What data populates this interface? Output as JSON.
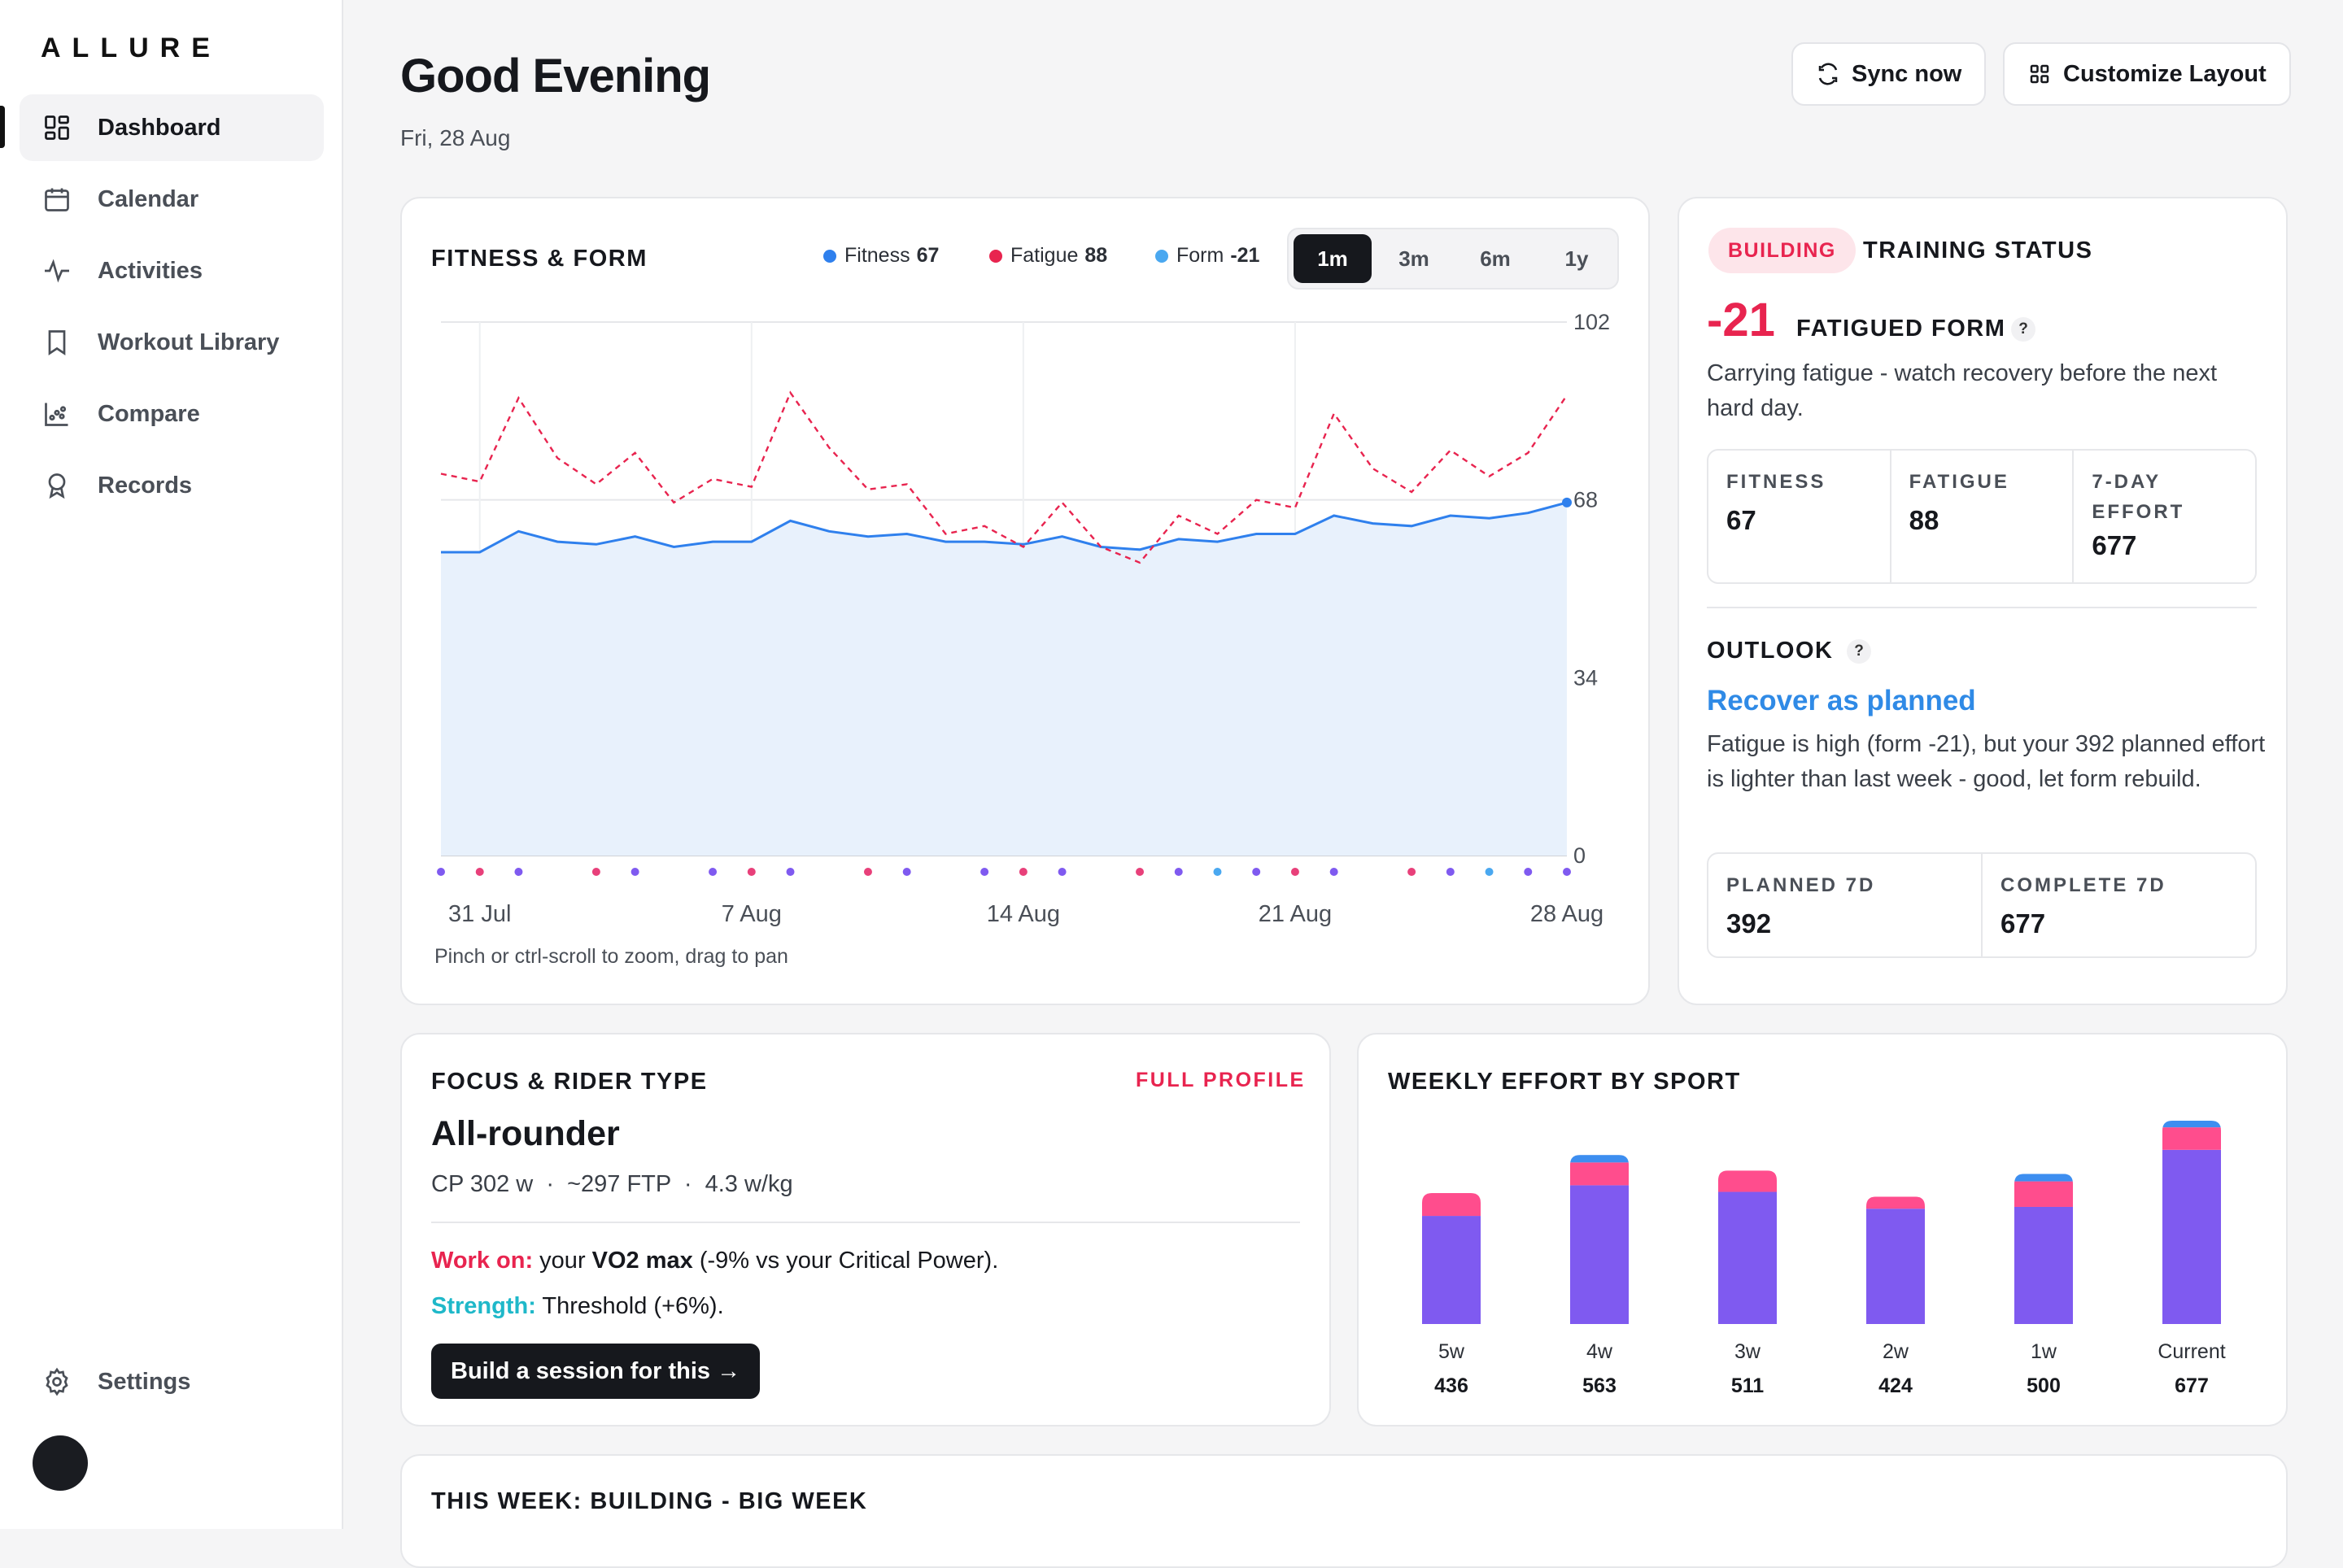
{
  "app": {
    "logo": "ALLURE"
  },
  "sidebar": {
    "items": [
      {
        "label": "Dashboard",
        "icon": "dashboard-icon",
        "active": true
      },
      {
        "label": "Calendar",
        "icon": "calendar-icon"
      },
      {
        "label": "Activities",
        "icon": "activity-icon"
      },
      {
        "label": "Workout Library",
        "icon": "bookmark-icon"
      },
      {
        "label": "Compare",
        "icon": "scatter-chart-icon"
      },
      {
        "label": "Records",
        "icon": "award-icon"
      }
    ],
    "settings": {
      "label": "Settings",
      "icon": "gear-icon"
    }
  },
  "header": {
    "greeting": "Good Evening",
    "date": "Fri, 28 Aug",
    "sync_label": "Sync now",
    "customize_label": "Customize Layout"
  },
  "fitness_form": {
    "title": "FITNESS & FORM",
    "legend": [
      {
        "name": "Fitness",
        "value": "67",
        "color": "#2f80ed"
      },
      {
        "name": "Fatigue",
        "value": "88",
        "color": "#e8244f"
      },
      {
        "name": "Form",
        "value": "-21",
        "color": "#4aa8f0"
      }
    ],
    "ranges": [
      "1m",
      "3m",
      "6m",
      "1y"
    ],
    "selected_range": "1m",
    "hint": "Pinch or ctrl-scroll to zoom, drag to pan"
  },
  "chart_data": {
    "type": "line",
    "x_tick_labels": [
      "31 Jul",
      "7 Aug",
      "14 Aug",
      "21 Aug",
      "28 Aug"
    ],
    "y_tick_labels": [
      "0",
      "34",
      "68",
      "102"
    ],
    "ylim": [
      0,
      102
    ],
    "x_count": 30,
    "series": [
      {
        "name": "Fitness",
        "style": "solid-area",
        "color": "#2f80ed",
        "values": [
          58,
          58,
          62,
          60,
          59.5,
          61,
          59,
          60,
          60,
          64,
          62,
          61,
          61.5,
          60,
          60,
          59.5,
          61,
          59,
          58.5,
          60.5,
          60,
          61.5,
          61.5,
          65,
          63.5,
          63,
          65,
          64.5,
          65.5,
          67.5
        ]
      },
      {
        "name": "Fatigue",
        "style": "dashed",
        "color": "#e8244f",
        "values": [
          73,
          71.5,
          87.5,
          76,
          71,
          77,
          67.5,
          72,
          70.5,
          88.5,
          78,
          70,
          71,
          61.5,
          63,
          59,
          67.5,
          59,
          56,
          65,
          61.5,
          68,
          66.5,
          84.5,
          74,
          69.5,
          77.5,
          72.5,
          77,
          88
        ]
      }
    ],
    "activity_dots": [
      "#7f5af0",
      "#e8407a",
      "#7f5af0",
      null,
      "#e8407a",
      "#7f5af0",
      null,
      "#7f5af0",
      "#e8407a",
      "#7f5af0",
      null,
      "#e8407a",
      "#7f5af0",
      null,
      "#7f5af0",
      "#e8407a",
      "#7f5af0",
      null,
      "#e8407a",
      "#7f5af0",
      "#4aa8f0",
      "#7f5af0",
      "#e8407a",
      "#7f5af0",
      null,
      "#e8407a",
      "#7f5af0",
      "#4aa8f0",
      "#7f5af0",
      "#7f5af0"
    ]
  },
  "training_status": {
    "badge": "BUILDING",
    "title": "TRAINING STATUS",
    "form_value": "-21",
    "form_label": "FATIGUED FORM",
    "help": "?",
    "description": "Carrying fatigue - watch recovery before the next hard day.",
    "stats": [
      {
        "label": "FITNESS",
        "value": "67"
      },
      {
        "label": "FATIGUE",
        "value": "88"
      },
      {
        "label": "7-DAY EFFORT",
        "value": "677"
      }
    ],
    "outlook_title": "OUTLOOK",
    "outlook_headline": "Recover as planned",
    "outlook_text": "Fatigue is high (form -21), but your 392 planned effort is lighter than last week - good, let form rebuild.",
    "plan_stats": [
      {
        "label": "PLANNED 7D",
        "value": "392"
      },
      {
        "label": "COMPLETE 7D",
        "value": "677"
      }
    ]
  },
  "focus": {
    "title": "FOCUS & RIDER TYPE",
    "link": "FULL PROFILE",
    "rider_type": "All-rounder",
    "meta": "CP 302 w  ·  ~297 FTP  ·  4.3 w/kg",
    "work_on_label": "Work on:",
    "work_on_pre": " your ",
    "work_on_bold": "VO2 max",
    "work_on_post": " (-9% vs your Critical Power).",
    "strength_label": "Strength:",
    "strength_text": " Threshold (+6%).",
    "build_button": "Build a session for this →"
  },
  "weekly_effort": {
    "title": "WEEKLY EFFORT BY SPORT",
    "colors": {
      "ride": "#7f5af0",
      "strength": "#ff4d8d",
      "run": "#3d8ef0"
    },
    "weeks": [
      {
        "label": "5w",
        "total": "436",
        "ride": 360,
        "strength": 76,
        "run": 0
      },
      {
        "label": "4w",
        "total": "563",
        "ride": 462,
        "strength": 76,
        "run": 25
      },
      {
        "label": "3w",
        "total": "511",
        "ride": 440,
        "strength": 71,
        "run": 0
      },
      {
        "label": "2w",
        "total": "424",
        "ride": 384,
        "strength": 40,
        "run": 0
      },
      {
        "label": "1w",
        "total": "500",
        "ride": 390,
        "strength": 85,
        "run": 25
      },
      {
        "label": "Current",
        "total": "677",
        "ride": 580,
        "strength": 75,
        "run": 22
      }
    ]
  },
  "this_week": {
    "title": "THIS WEEK: BUILDING - BIG WEEK"
  }
}
